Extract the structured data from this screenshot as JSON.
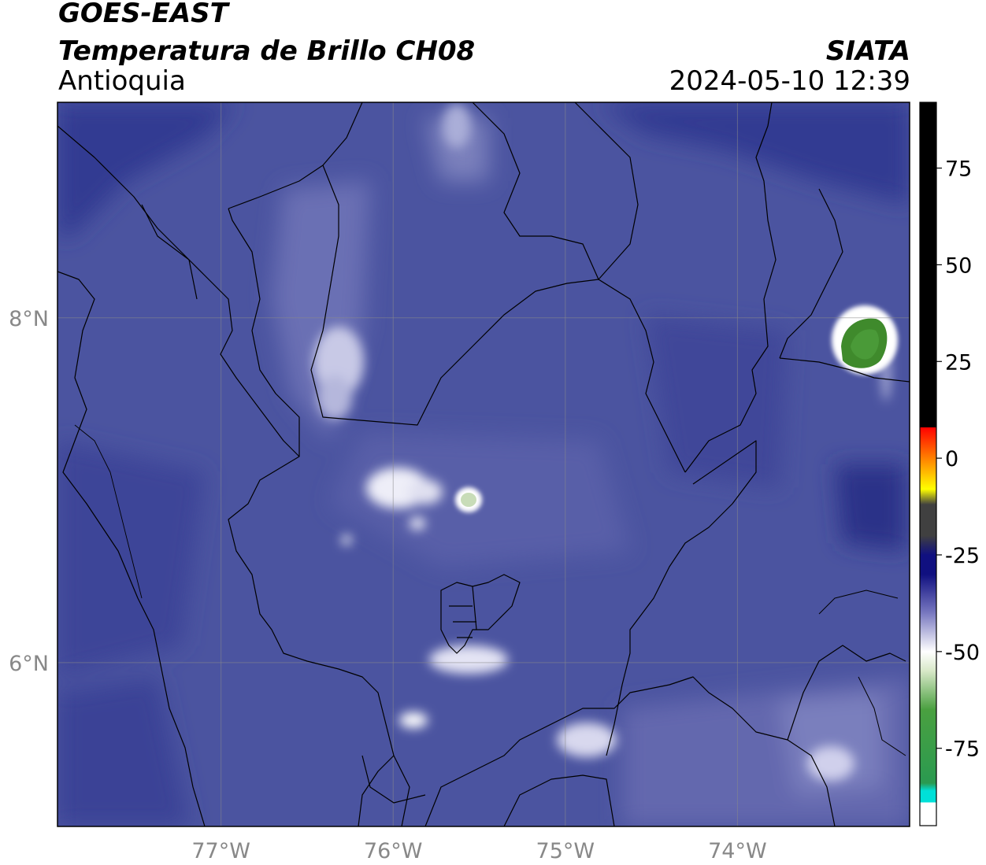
{
  "header": {
    "satellite": "GOES-EAST",
    "product": "Temperatura de Brillo CH08",
    "region": "Antioquia",
    "organization": "SIATA",
    "timestamp": "2024-05-10 12:39"
  },
  "map": {
    "lon_range": [
      -77.95,
      -73.0
    ],
    "lat_range": [
      5.05,
      9.25
    ],
    "lon_ticks": [
      {
        "value": -77,
        "label": "77°W"
      },
      {
        "value": -76,
        "label": "76°W"
      },
      {
        "value": -75,
        "label": "75°W"
      },
      {
        "value": -74,
        "label": "74°W"
      }
    ],
    "lat_ticks": [
      {
        "value": 8,
        "label": "8°N"
      },
      {
        "value": 6,
        "label": "6°N"
      }
    ],
    "background_color": "#4b54a0",
    "grid": true
  },
  "colorbar": {
    "range": [
      -95,
      92
    ],
    "ticks": [
      {
        "value": 75,
        "label": "75"
      },
      {
        "value": 50,
        "label": "50"
      },
      {
        "value": 25,
        "label": "25"
      },
      {
        "value": 0,
        "label": "0"
      },
      {
        "value": -25,
        "label": "-25"
      },
      {
        "value": -50,
        "label": "-50"
      },
      {
        "value": -75,
        "label": "-75"
      }
    ],
    "colors": [
      "#ffffff",
      "#00e0d8",
      "#2a9a50",
      "#4aa040",
      "#d8e8c8",
      "#ffffff",
      "#7878c0",
      "#101080",
      "#404040",
      "#ffff00",
      "#ff8000",
      "#ff0000",
      "#000000"
    ]
  }
}
